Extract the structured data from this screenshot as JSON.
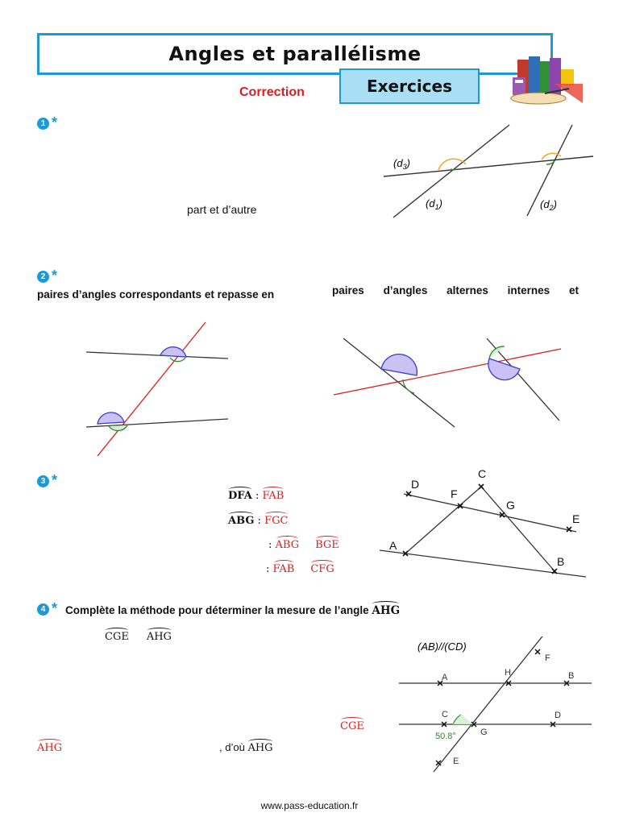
{
  "header": {
    "title": "Angles et parallélisme",
    "subtitle_tab": "Exercices",
    "correction_label": "Correction"
  },
  "ex1": {
    "number": "1",
    "star": "*",
    "text_part": "part et d’autre",
    "labels": {
      "d3": "(d",
      "d3_sub": "3",
      "d1": "(d",
      "d1_sub": "1",
      "d2": "(d",
      "d2_sub": "2",
      "close": ")"
    }
  },
  "ex2": {
    "number": "2",
    "star": "*",
    "left_text": "paires d’angles correspondants et repasse en",
    "right_text": [
      "paires",
      "d’angles",
      "alternes",
      "internes",
      "et"
    ]
  },
  "ex3": {
    "number": "3",
    "star": "*",
    "rows": [
      {
        "left": "DFA",
        "sep": " : ",
        "right": "FAB",
        "left_bold": true,
        "left_color": "black"
      },
      {
        "left": "ABG",
        "sep": " : ",
        "right": "FGC",
        "left_bold": true,
        "left_color": "black"
      },
      {
        "left": "ABG",
        "sep": ": ",
        "right": "BGE",
        "left_bold": false,
        "left_color": "red"
      },
      {
        "left": "FAB",
        "sep": ": ",
        "right": "CFG",
        "left_bold": false,
        "left_color": "red"
      }
    ],
    "points": {
      "D": "D",
      "F": "F",
      "C": "C",
      "G": "G",
      "E": "E",
      "A": "A",
      "B": "B"
    }
  },
  "ex4": {
    "number": "4",
    "star": "*",
    "title": "Complète la méthode pour déterminer la mesure de l’angle",
    "title_angle": "AHG",
    "line1_a": "CGE",
    "line1_b": "AHG",
    "red_cge": "CGE",
    "red_ahg": "AHG",
    "text_dou": ", d’où",
    "text_dou_angle": "AHG",
    "parallel_label": "(AB)//(CD)",
    "angle_value": "50.8°",
    "points": {
      "A": "A",
      "H": "H",
      "B": "B",
      "F": "F",
      "C": "C",
      "G": "G",
      "D": "D",
      "E": "E"
    }
  },
  "footer": {
    "url": "www.pass-education.fr"
  },
  "colors": {
    "accent_blue": "#1b9ad6",
    "tab_fill": "#a9def4",
    "red": "#e21b1b",
    "orange": "#f5a623",
    "green": "#2e8b2e",
    "purple_fill": "#c9c2f2"
  }
}
